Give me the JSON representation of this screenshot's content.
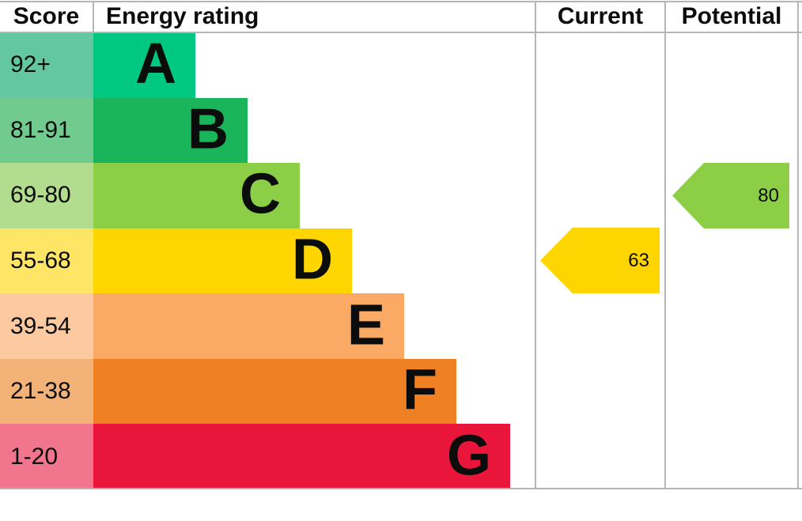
{
  "header": {
    "score": "Score",
    "energy_rating": "Energy rating",
    "current": "Current",
    "potential": "Potential"
  },
  "bands": [
    {
      "letter": "A",
      "score": "92+",
      "bar_color": "#00c781",
      "score_bg": "#63c8a1"
    },
    {
      "letter": "B",
      "score": "81-91",
      "bar_color": "#1ab45a",
      "score_bg": "#71cb8e"
    },
    {
      "letter": "C",
      "score": "69-80",
      "bar_color": "#8ccf46",
      "score_bg": "#b3dd8e"
    },
    {
      "letter": "D",
      "score": "55-68",
      "bar_color": "#ffd500",
      "score_bg": "#ffe566"
    },
    {
      "letter": "E",
      "score": "39-54",
      "bar_color": "#fbaa65",
      "score_bg": "#fcc9a0"
    },
    {
      "letter": "F",
      "score": "21-38",
      "bar_color": "#ef8023",
      "score_bg": "#f3b277"
    },
    {
      "letter": "G",
      "score": "1-20",
      "bar_color": "#e9153b",
      "score_bg": "#f1758d"
    }
  ],
  "current": {
    "value": "63",
    "band": "D",
    "color": "#ffd500"
  },
  "potential": {
    "value": "80",
    "band": "C",
    "color": "#8ccf46"
  },
  "grid_color": "#b3b6b8",
  "chart_data": {
    "type": "bar",
    "title": "Energy rating",
    "categories": [
      "A",
      "B",
      "C",
      "D",
      "E",
      "F",
      "G"
    ],
    "score_ranges": [
      "92+",
      "81-91",
      "69-80",
      "55-68",
      "39-54",
      "21-38",
      "1-20"
    ],
    "bar_lengths_relative": [
      1,
      2,
      3,
      4,
      5,
      6,
      7
    ],
    "band_colors": [
      "#00c781",
      "#1ab45a",
      "#8ccf46",
      "#ffd500",
      "#fbaa65",
      "#ef8023",
      "#e9153b"
    ],
    "columns": [
      "Score",
      "Energy rating",
      "Current",
      "Potential"
    ],
    "current_rating": {
      "value": 63,
      "band": "D"
    },
    "potential_rating": {
      "value": 80,
      "band": "C"
    },
    "legend_position": "none",
    "grid": false
  }
}
